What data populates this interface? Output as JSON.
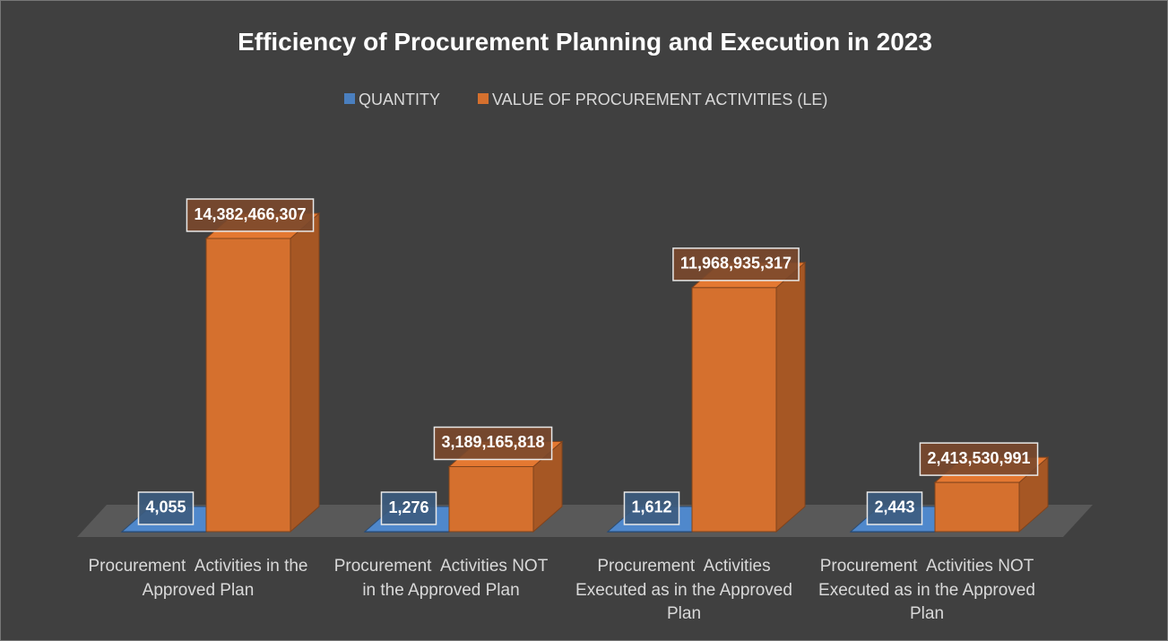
{
  "chart_data": {
    "type": "bar3d",
    "title": "Efficiency of Procurement Planning and Execution in 2023",
    "categories": [
      "Procurement  Activities in the Approved Plan",
      "Procurement  Activities NOT in the Approved Plan",
      "Procurement  Activities Executed as in the Approved Plan",
      "Procurement  Activities NOT Executed as in the Approved Plan"
    ],
    "legend": "top",
    "series": [
      {
        "name": "QUANTITY",
        "color": "#4a7fbf",
        "values": [
          4055,
          1276,
          1612,
          2443
        ],
        "value_labels": [
          "4,055",
          "1,276",
          "1,612",
          "2,443"
        ]
      },
      {
        "name": "VALUE OF PROCUREMENT ACTIVITIES (LE)",
        "color": "#d5702e",
        "values": [
          14382466307,
          3189165818,
          11968935317,
          2413530991
        ],
        "value_labels": [
          "14,382,466,307",
          "3,189,165,818",
          "11,968,935,317",
          "2,413,530,991"
        ]
      }
    ]
  }
}
